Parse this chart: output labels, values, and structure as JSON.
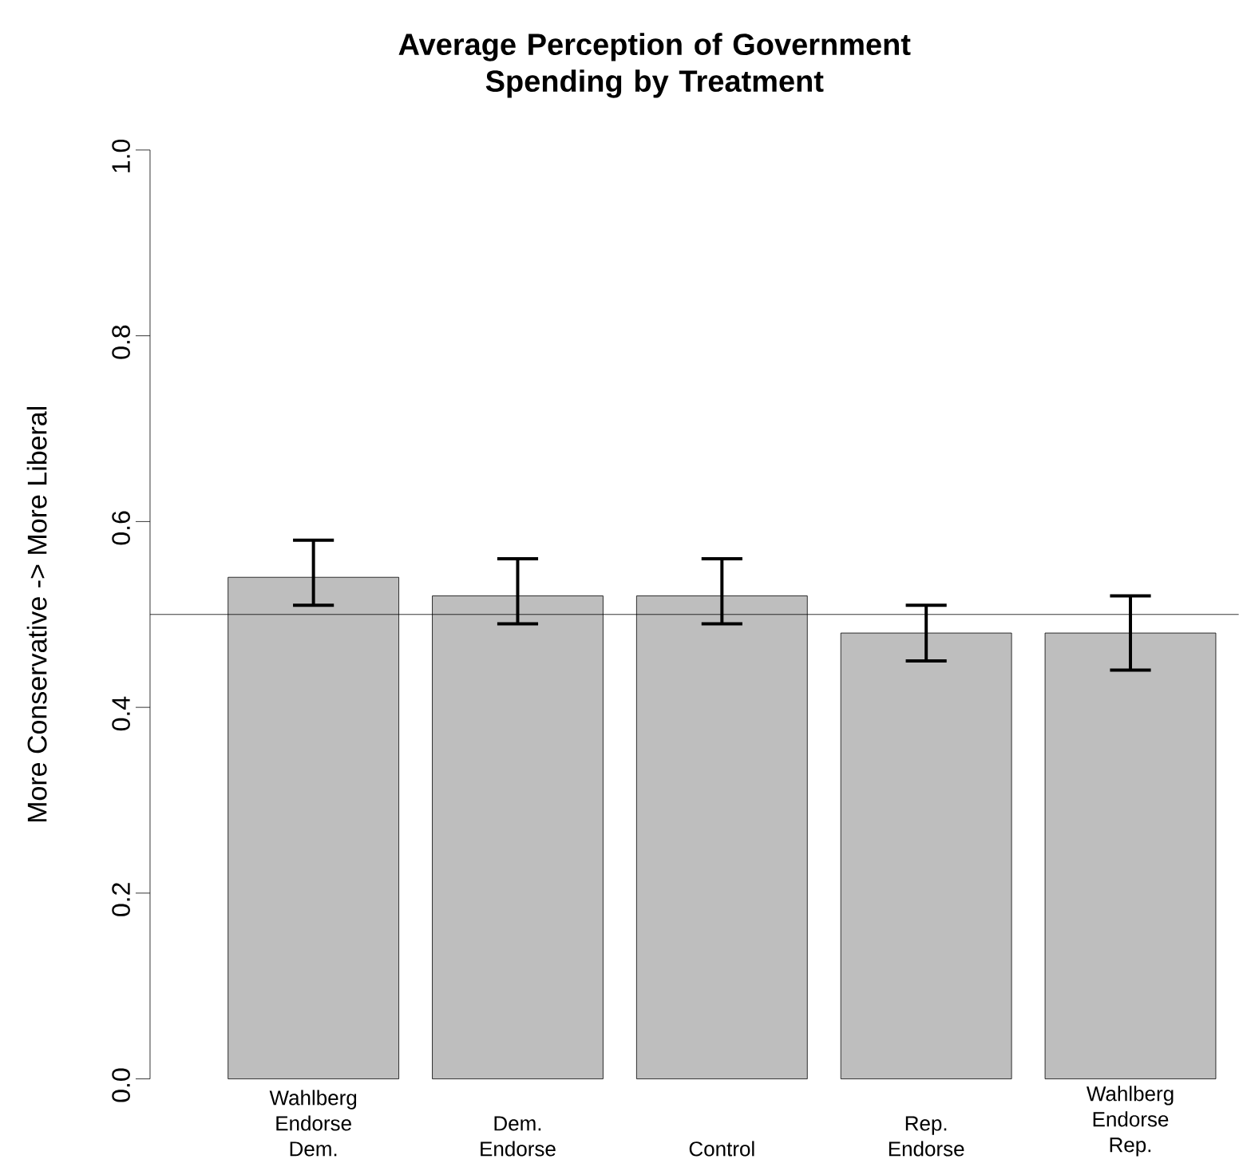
{
  "chart_data": {
    "type": "bar",
    "title": "Average Perception of Government Spending by Treatment",
    "ylabel": "More Conservative -> More Liberal",
    "categories": [
      "Wahlberg Endorse Dem.",
      "Dem. Endorse",
      "Control",
      "Rep. Endorse",
      "Wahlberg Endorse Rep."
    ],
    "values": [
      0.54,
      0.52,
      0.52,
      0.48,
      0.48
    ],
    "errors": [
      [
        0.51,
        0.58
      ],
      [
        0.49,
        0.56
      ],
      [
        0.49,
        0.56
      ],
      [
        0.45,
        0.51
      ],
      [
        0.44,
        0.52
      ]
    ],
    "color": "#bebebe",
    "ylim": [
      0,
      1
    ],
    "yticks": [
      {
        "value": 0,
        "label": "0.0"
      },
      0.2,
      0.4,
      0.6,
      0.8,
      {
        "value": 1,
        "label": "1.0"
      }
    ],
    "ref_lines": [
      {
        "axis": "y",
        "value": 0.5,
        "color": "#000000"
      }
    ],
    "grid": false
  }
}
